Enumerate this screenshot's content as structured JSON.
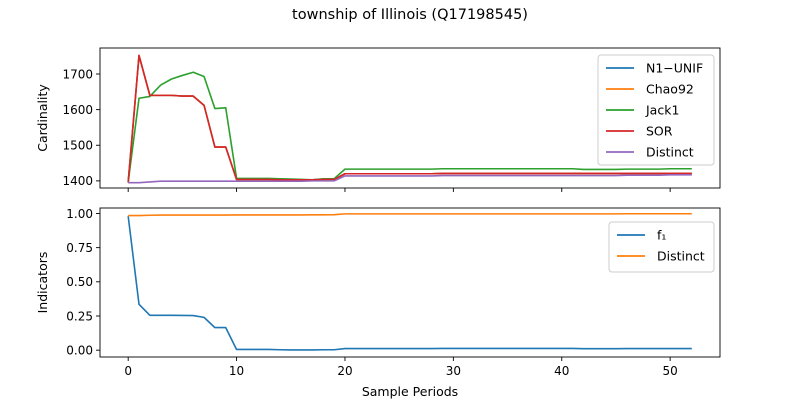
{
  "figure": {
    "title": "township of Illinois (Q17198545)"
  },
  "colors": {
    "blue": "#1f77b4",
    "orange": "#ff7f0e",
    "green": "#2ca02c",
    "red": "#d62728",
    "purple": "#9467bd"
  },
  "chart_data": [
    {
      "type": "line",
      "title": "township of Illinois (Q17198545)",
      "xlabel": "",
      "ylabel": "Cardinality",
      "xlim": [
        -2.6,
        54.6
      ],
      "ylim": [
        1380,
        1773
      ],
      "yticks": [
        1400,
        1500,
        1600,
        1700
      ],
      "xticks": [
        0,
        10,
        20,
        30,
        40,
        50
      ],
      "show_x_tick_labels": false,
      "grid": false,
      "legend_position": "upper right",
      "x": [
        0,
        1,
        2,
        3,
        4,
        5,
        6,
        7,
        8,
        9,
        10,
        11,
        12,
        13,
        14,
        15,
        16,
        17,
        18,
        19,
        20,
        21,
        22,
        23,
        24,
        25,
        26,
        27,
        28,
        29,
        30,
        31,
        32,
        33,
        34,
        35,
        36,
        37,
        38,
        39,
        40,
        41,
        42,
        43,
        44,
        45,
        46,
        47,
        48,
        49,
        50,
        51,
        52
      ],
      "series": [
        {
          "name": "N1−UNIF",
          "color": "#1f77b4",
          "values": [
            1396,
            1752,
            1640,
            1640,
            1640,
            1638,
            1638,
            1612,
            1495,
            1495,
            1404,
            1404,
            1404,
            1404,
            1403,
            1403,
            1403,
            1403,
            1404,
            1404,
            1420,
            1420,
            1420,
            1420,
            1420,
            1420,
            1420,
            1420,
            1420,
            1421,
            1421,
            1421,
            1421,
            1421,
            1421,
            1421,
            1421,
            1421,
            1421,
            1421,
            1421,
            1421,
            1421,
            1421,
            1421,
            1421,
            1421,
            1421,
            1421,
            1421,
            1421,
            1421,
            1421
          ]
        },
        {
          "name": "Chao92",
          "color": "#ff7f0e",
          "values": [
            1396,
            1752,
            1640,
            1640,
            1640,
            1638,
            1638,
            1612,
            1495,
            1495,
            1404,
            1404,
            1404,
            1404,
            1403,
            1403,
            1403,
            1403,
            1404,
            1404,
            1420,
            1420,
            1420,
            1420,
            1420,
            1420,
            1420,
            1420,
            1420,
            1421,
            1421,
            1421,
            1421,
            1421,
            1421,
            1421,
            1421,
            1421,
            1421,
            1421,
            1421,
            1421,
            1421,
            1421,
            1421,
            1421,
            1421,
            1421,
            1421,
            1421,
            1421,
            1421,
            1421
          ]
        },
        {
          "name": "Jack1",
          "color": "#2ca02c",
          "values": [
            1396,
            1632,
            1637,
            1669,
            1686,
            1696,
            1705,
            1693,
            1603,
            1605,
            1407,
            1407,
            1407,
            1407,
            1406,
            1405,
            1404,
            1403,
            1406,
            1406,
            1433,
            1433,
            1433,
            1433,
            1433,
            1433,
            1433,
            1433,
            1433,
            1434,
            1434,
            1434,
            1434,
            1434,
            1434,
            1434,
            1434,
            1434,
            1434,
            1434,
            1434,
            1434,
            1432,
            1432,
            1432,
            1432,
            1433,
            1433,
            1433,
            1433,
            1434,
            1434,
            1434
          ]
        },
        {
          "name": "SOR",
          "color": "#d62728",
          "values": [
            1396,
            1752,
            1640,
            1640,
            1640,
            1638,
            1638,
            1612,
            1495,
            1495,
            1404,
            1404,
            1404,
            1404,
            1403,
            1403,
            1403,
            1403,
            1404,
            1404,
            1420,
            1420,
            1420,
            1420,
            1420,
            1420,
            1420,
            1420,
            1420,
            1421,
            1421,
            1421,
            1421,
            1421,
            1421,
            1421,
            1421,
            1421,
            1421,
            1421,
            1421,
            1421,
            1421,
            1421,
            1421,
            1421,
            1421,
            1421,
            1421,
            1421,
            1421,
            1421,
            1421
          ]
        },
        {
          "name": "Distinct",
          "color": "#9467bd",
          "values": [
            1395,
            1395,
            1397,
            1399,
            1399,
            1399,
            1399,
            1399,
            1399,
            1399,
            1399,
            1399,
            1399,
            1399,
            1399,
            1399,
            1399,
            1400,
            1400,
            1400,
            1414,
            1414,
            1414,
            1414,
            1414,
            1414,
            1414,
            1414,
            1414,
            1415,
            1415,
            1415,
            1415,
            1415,
            1415,
            1415,
            1415,
            1415,
            1415,
            1415,
            1415,
            1415,
            1415,
            1415,
            1415,
            1415,
            1416,
            1416,
            1416,
            1416,
            1417,
            1417,
            1417
          ]
        }
      ]
    },
    {
      "type": "line",
      "title": "",
      "xlabel": "Sample Periods",
      "ylabel": "Indicators",
      "xlim": [
        -2.6,
        54.6
      ],
      "ylim": [
        -0.05,
        1.04
      ],
      "yticks": [
        0.0,
        0.25,
        0.5,
        0.75,
        1.0
      ],
      "ytick_labels": [
        "0.00",
        "0.25",
        "0.50",
        "0.75",
        "1.00"
      ],
      "xticks": [
        0,
        10,
        20,
        30,
        40,
        50
      ],
      "xtick_labels": [
        "0",
        "10",
        "20",
        "30",
        "40",
        "50"
      ],
      "grid": false,
      "legend_position": "upper right",
      "x": [
        0,
        1,
        2,
        3,
        4,
        5,
        6,
        7,
        8,
        9,
        10,
        11,
        12,
        13,
        14,
        15,
        16,
        17,
        18,
        19,
        20,
        21,
        22,
        23,
        24,
        25,
        26,
        27,
        28,
        29,
        30,
        31,
        32,
        33,
        34,
        35,
        36,
        37,
        38,
        39,
        40,
        41,
        42,
        43,
        44,
        45,
        46,
        47,
        48,
        49,
        50,
        51,
        52
      ],
      "series": [
        {
          "name": "f₁",
          "color": "#1f77b4",
          "values": [
            0.98,
            0.335,
            0.255,
            0.255,
            0.255,
            0.254,
            0.253,
            0.24,
            0.165,
            0.165,
            0.005,
            0.005,
            0.005,
            0.005,
            0.003,
            0.002,
            0.002,
            0.002,
            0.003,
            0.003,
            0.012,
            0.012,
            0.012,
            0.012,
            0.012,
            0.012,
            0.012,
            0.012,
            0.012,
            0.013,
            0.013,
            0.013,
            0.013,
            0.013,
            0.013,
            0.013,
            0.013,
            0.013,
            0.013,
            0.013,
            0.013,
            0.013,
            0.011,
            0.011,
            0.011,
            0.011,
            0.012,
            0.012,
            0.012,
            0.012,
            0.012,
            0.012,
            0.012
          ]
        },
        {
          "name": "Distinct",
          "color": "#ff7f0e",
          "values": [
            0.985,
            0.985,
            0.987,
            0.988,
            0.988,
            0.988,
            0.988,
            0.988,
            0.988,
            0.988,
            0.989,
            0.989,
            0.989,
            0.989,
            0.989,
            0.989,
            0.989,
            0.99,
            0.99,
            0.991,
            0.997,
            0.997,
            0.997,
            0.997,
            0.997,
            0.997,
            0.997,
            0.997,
            0.997,
            0.997,
            0.997,
            0.997,
            0.997,
            0.997,
            0.997,
            0.997,
            0.997,
            0.997,
            0.997,
            0.997,
            0.997,
            0.997,
            0.997,
            0.997,
            0.997,
            0.997,
            0.998,
            0.998,
            0.998,
            0.998,
            0.998,
            0.998,
            0.998
          ]
        }
      ]
    }
  ]
}
